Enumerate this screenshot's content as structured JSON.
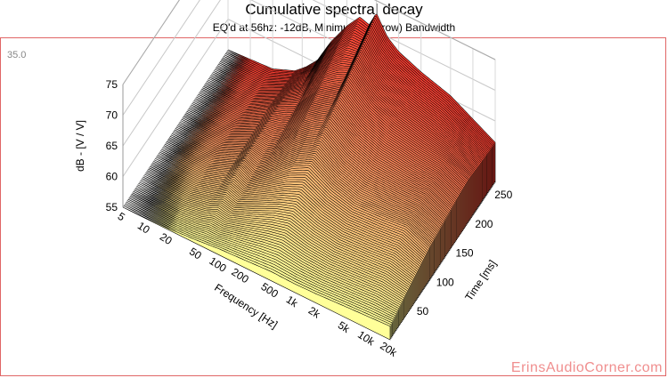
{
  "title": "Cumulative spectral decay",
  "subtitle": "EQ'd at 56hz: -12dB, Minimum (Narrow) Bandwidth",
  "corner_label": "35.0",
  "watermark": "ErinsAudioCorner.com",
  "chart_data": {
    "type": "waterfall",
    "title": "Cumulative spectral decay",
    "subtitle": "EQ'd at 56hz: -12dB, Minimum (Narrow) Bandwidth",
    "xlabel": "Frequency [Hz]",
    "ylabel": "Time [ms]",
    "zlabel": "dB - [V / V]",
    "x_scale": "log",
    "xlim": [
      5,
      20000
    ],
    "ylim": [
      0,
      270
    ],
    "zlim": [
      55,
      75
    ],
    "x_ticks": [
      5,
      10,
      20,
      50,
      100,
      200,
      500,
      1000,
      2000,
      5000,
      10000,
      20000
    ],
    "x_tick_labels": [
      "5",
      "10",
      "20",
      "50",
      "100",
      "200",
      "500",
      "1k",
      "2k",
      "5k",
      "10k",
      "20k"
    ],
    "y_ticks": [
      50,
      100,
      150,
      200,
      250
    ],
    "y_tick_labels": [
      "50",
      "100",
      "150",
      "200",
      "250"
    ],
    "z_ticks": [
      55,
      60,
      65,
      70,
      75
    ],
    "z_tick_labels": [
      "55",
      "60",
      "65",
      "70",
      "75"
    ],
    "colors": {
      "near": "#ffff99",
      "mid": "#000000",
      "far": "#ff3b30",
      "frame": "#e06666",
      "watermark": "#f08f8f"
    },
    "series": [
      {
        "time": 0,
        "points": [
          [
            5,
            55
          ],
          [
            10,
            55.1
          ],
          [
            20,
            55.2
          ],
          [
            50,
            55.6
          ],
          [
            100,
            56
          ],
          [
            200,
            56.2
          ],
          [
            500,
            56.5
          ],
          [
            1000,
            56.4
          ],
          [
            2000,
            56.5
          ],
          [
            5000,
            56.8
          ],
          [
            10000,
            57
          ],
          [
            20000,
            57.2
          ]
        ]
      },
      {
        "time": 100,
        "points": [
          [
            5,
            55
          ],
          [
            20,
            55.4
          ],
          [
            40,
            56.8
          ],
          [
            56,
            58.5
          ],
          [
            80,
            57.5
          ],
          [
            150,
            60
          ],
          [
            300,
            63
          ],
          [
            500,
            64.5
          ],
          [
            1000,
            62.5
          ],
          [
            2000,
            61.5
          ],
          [
            5000,
            61.8
          ],
          [
            10000,
            62.2
          ],
          [
            20000,
            60.5
          ]
        ]
      },
      {
        "time": 200,
        "points": [
          [
            5,
            55
          ],
          [
            20,
            55.4
          ],
          [
            40,
            57.5
          ],
          [
            56,
            59
          ],
          [
            100,
            60.5
          ],
          [
            200,
            65
          ],
          [
            400,
            67.5
          ],
          [
            500,
            69.5
          ],
          [
            700,
            68
          ],
          [
            1000,
            66.5
          ],
          [
            2000,
            65
          ],
          [
            5000,
            64
          ],
          [
            10000,
            63.5
          ],
          [
            20000,
            62
          ]
        ]
      },
      {
        "time": 270,
        "points": [
          [
            5,
            55
          ],
          [
            20,
            55.5
          ],
          [
            40,
            57
          ],
          [
            56,
            58.5
          ],
          [
            80,
            60.5
          ],
          [
            120,
            64.5
          ],
          [
            200,
            68.5
          ],
          [
            300,
            71
          ],
          [
            400,
            70.5
          ],
          [
            500,
            73
          ],
          [
            700,
            70
          ],
          [
            1000,
            68.5
          ],
          [
            2000,
            67
          ],
          [
            5000,
            65.5
          ],
          [
            10000,
            63.5
          ],
          [
            20000,
            61.5
          ]
        ]
      }
    ]
  }
}
